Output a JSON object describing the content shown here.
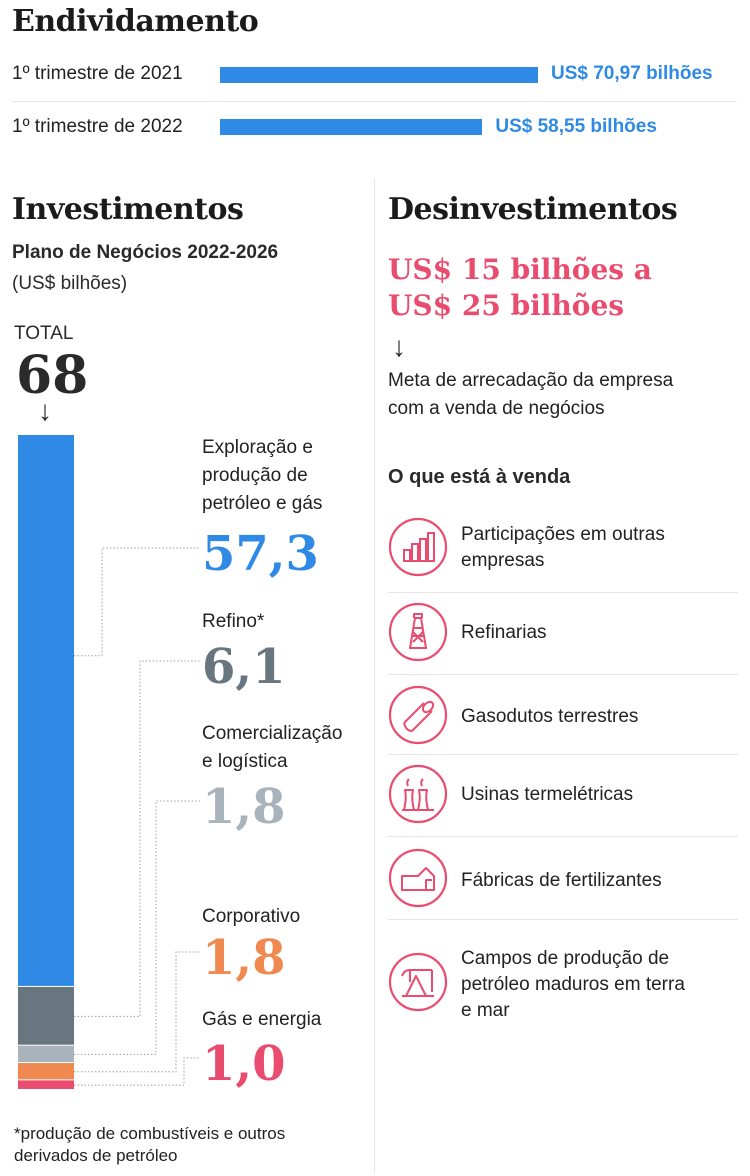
{
  "debt": {
    "title": "Endividamento",
    "rows": [
      {
        "label": "1º trimestre de 2021",
        "value": 70.97,
        "value_text": "US$ 70,97 bilhões"
      },
      {
        "label": "1º trimestre de 2022",
        "value": 58.55,
        "value_text": "US$ 58,55 bilhões"
      }
    ]
  },
  "investments": {
    "title": "Investimentos",
    "subtitle": "Plano de Negócios 2022-2026",
    "unit": "(US$ bilhões)",
    "total_label": "TOTAL",
    "total_value": "68",
    "arrow": "↓"
  },
  "chart_data": {
    "type": "bar",
    "title": "Investimentos",
    "subtitle": "Plano de Negócios 2022-2026",
    "unit": "US$ bilhões",
    "stacked": true,
    "total": 68,
    "categories": [
      "Exploração e produção de petróleo e gás",
      "Refino*",
      "Comercialização e logística",
      "Corporativo",
      "Gás e energia"
    ],
    "values": [
      57.3,
      6.1,
      1.8,
      1.8,
      1.0
    ],
    "value_labels": [
      "57,3",
      "6,1",
      "1,8",
      "1,8",
      "1,0"
    ],
    "label_lines": [
      "Exploração e\nprodução de\npetróleo e gás",
      "Refino*",
      "Comercialização\ne logística",
      "Corporativo",
      "Gás e energia"
    ],
    "colors": [
      "#2f8ae5",
      "#67767f",
      "#a8b3bb",
      "#f0894f",
      "#ea4c6f"
    ]
  },
  "divestments": {
    "title": "Desinvestimentos",
    "range_text": "US$ 15 bilhões a\nUS$ 25 bilhões",
    "arrow": "↓",
    "description": "Meta de arrecadação da empresa\ncom a venda de negócios",
    "sale_title": "O que está à venda",
    "items": [
      {
        "label": "Participações em outras\nempresas",
        "icon": "bar-chart-icon"
      },
      {
        "label": "Refinarias",
        "icon": "refinery-tower-icon"
      },
      {
        "label": "Gasodutos terrestres",
        "icon": "pipeline-icon"
      },
      {
        "label": "Usinas termelétricas",
        "icon": "power-plant-icon"
      },
      {
        "label": "Fábricas de fertilizantes",
        "icon": "factory-icon"
      },
      {
        "label": "Campos de produção de\npetróleo maduros em terra\ne mar",
        "icon": "oil-pump-icon"
      }
    ],
    "accent_color": "#ea4c6f"
  },
  "footnote": "*produção de combustíveis e outros\nderivados de petróleo"
}
